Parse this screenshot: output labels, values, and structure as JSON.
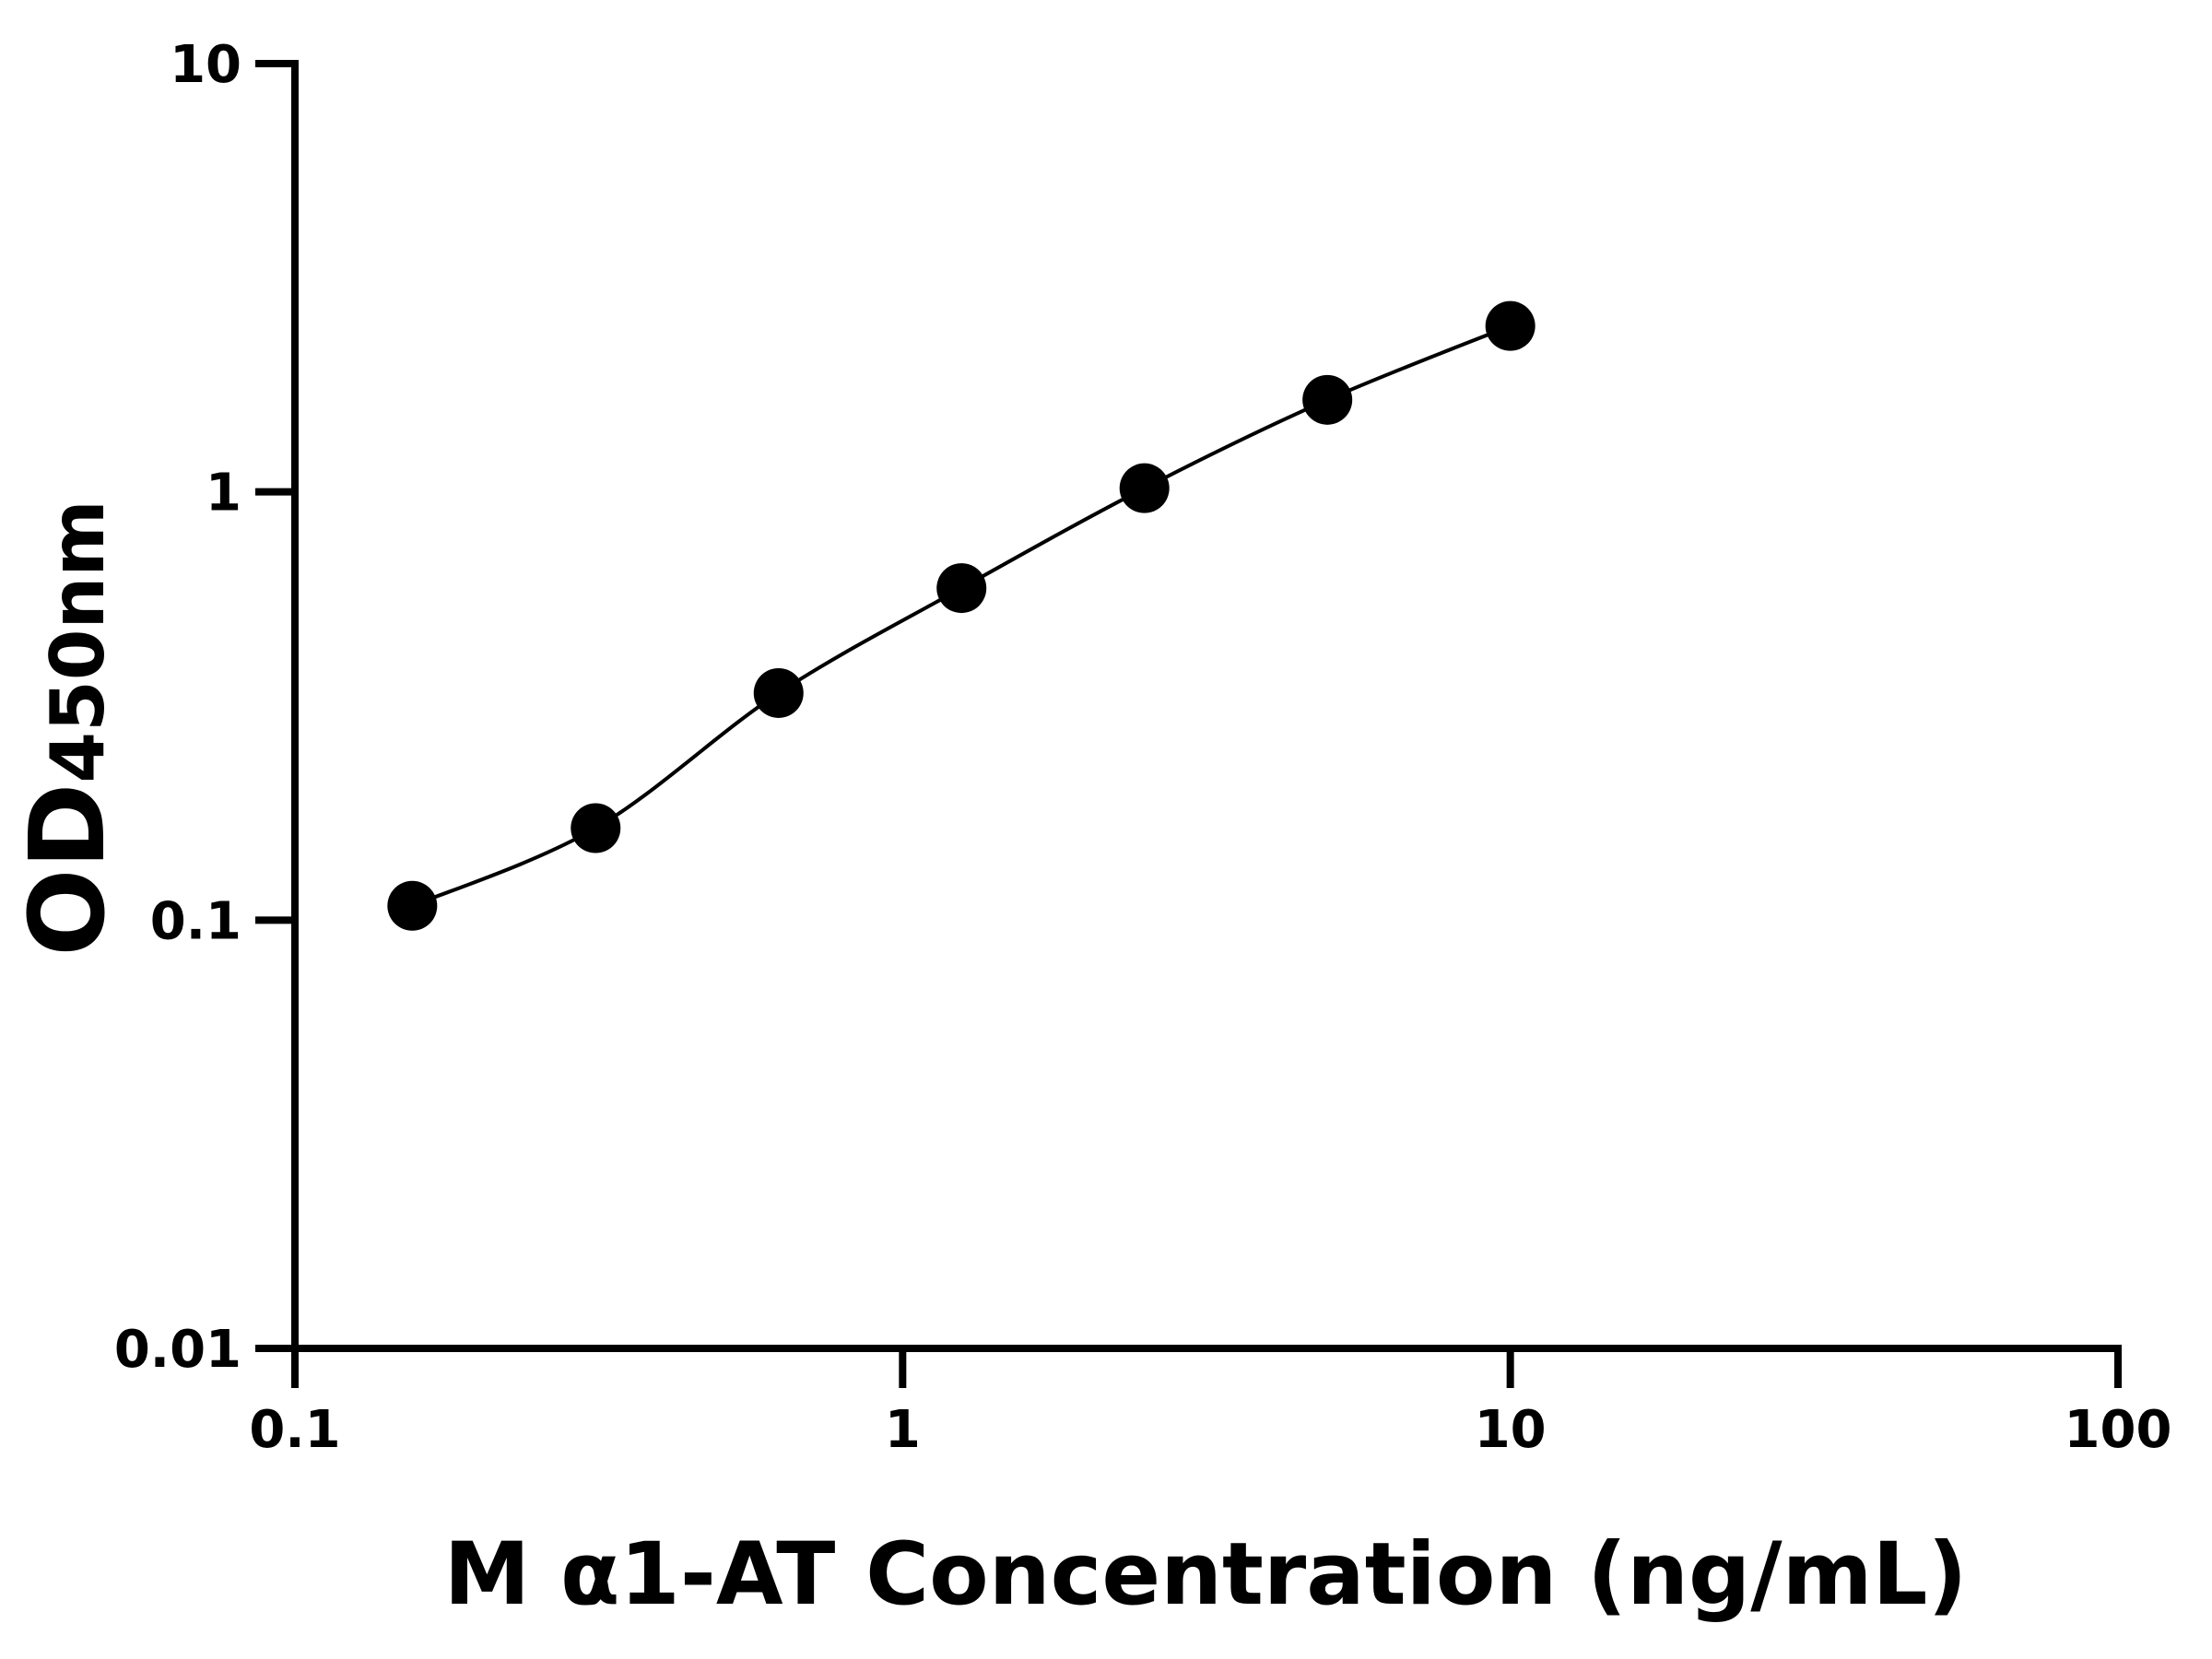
{
  "chart_data": {
    "type": "scatter",
    "xlabel": "M α1-AT Concentration (ng/mL)",
    "ylabel": "OD",
    "ylabel_sub": "450nm",
    "x": [
      0.156,
      0.3125,
      0.625,
      1.25,
      2.5,
      5,
      10
    ],
    "series": [
      {
        "color": "#000000",
        "values": [
          0.108,
          0.164,
          0.339,
          0.596,
          1.02,
          1.64,
          2.44
        ]
      }
    ],
    "xscale": "log",
    "yscale": "log",
    "xlim": [
      0.1,
      100
    ],
    "ylim": [
      0.01,
      10
    ],
    "xticks": [
      0.1,
      1,
      10,
      100
    ],
    "yticks": [
      0.01,
      0.1,
      1,
      10
    ],
    "line": true
  }
}
